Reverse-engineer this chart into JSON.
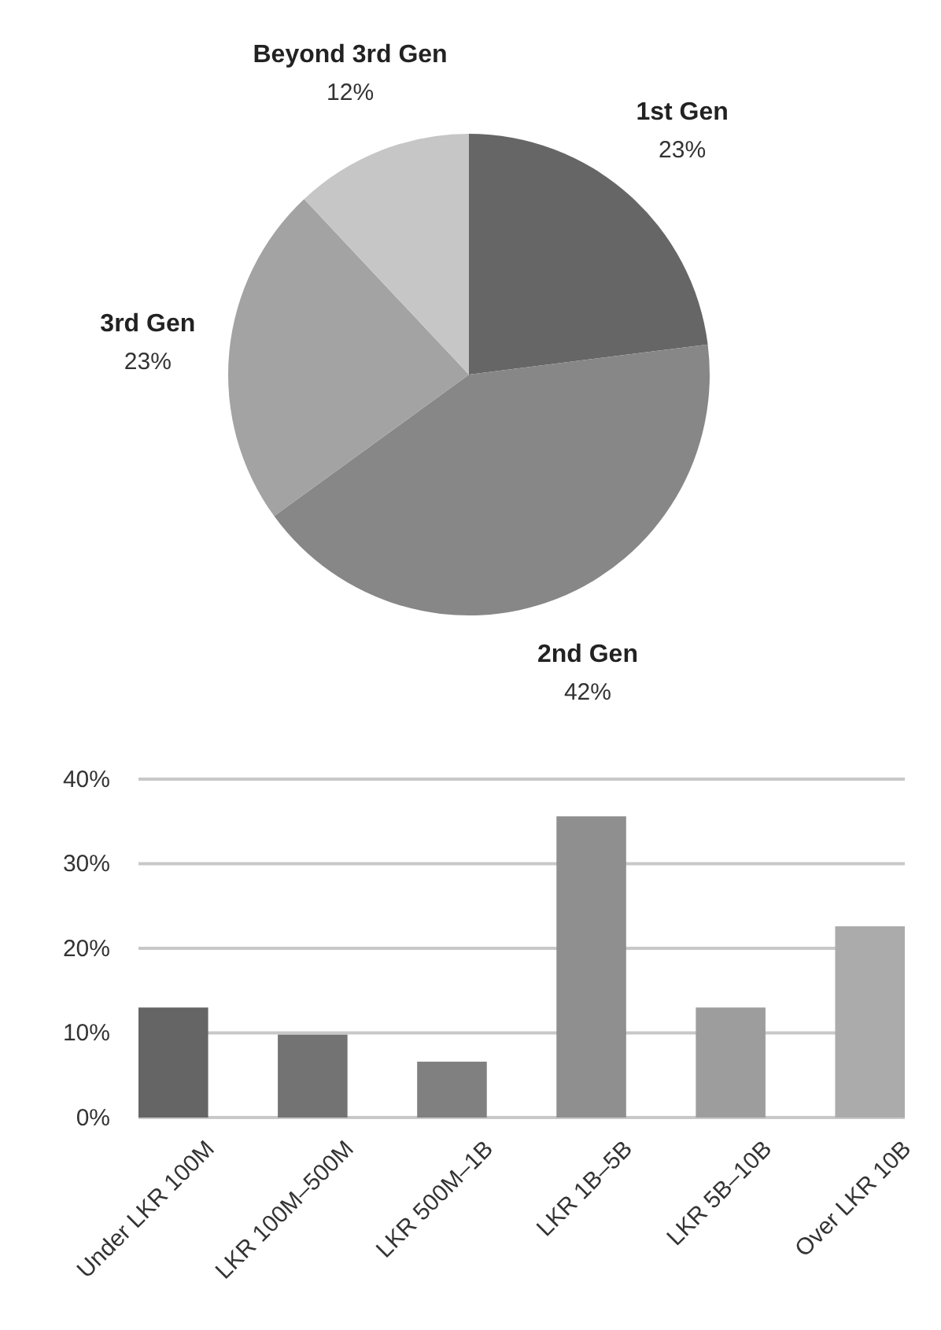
{
  "chart_data": [
    {
      "type": "pie",
      "categories": [
        "1st Gen",
        "2nd Gen",
        "3rd Gen",
        "Beyond 3rd Gen"
      ],
      "values": [
        23,
        42,
        23,
        12
      ],
      "colors": [
        "#666666",
        "#878787",
        "#a3a3a3",
        "#c6c6c6"
      ],
      "value_labels": [
        "23%",
        "42%",
        "23%",
        "12%"
      ]
    },
    {
      "type": "bar",
      "categories": [
        "Under LKR 100M",
        "LKR 100M–500M",
        "LKR 500M–1B",
        "LKR 1B–5B",
        "LKR 5B–10B",
        "Over LKR 10B"
      ],
      "values": [
        13,
        9.8,
        6.6,
        35.6,
        13,
        22.6
      ],
      "colors": [
        "#656565",
        "#737373",
        "#808080",
        "#8f8f8f",
        "#9d9d9d",
        "#ababab"
      ],
      "ylim": [
        0,
        40
      ],
      "yticks": [
        {
          "value": 0,
          "label": "0%"
        },
        {
          "value": 10,
          "label": "10%"
        },
        {
          "value": 20,
          "label": "20%"
        },
        {
          "value": 30,
          "label": "30%"
        },
        {
          "value": 40,
          "label": "40%"
        }
      ],
      "grid": "y"
    }
  ]
}
